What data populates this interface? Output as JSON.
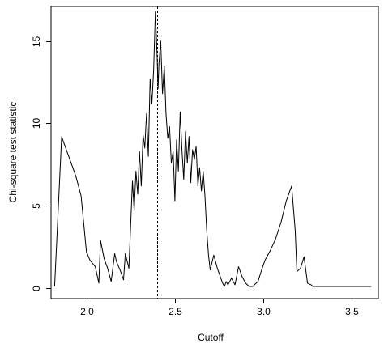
{
  "chart_data": {
    "type": "line",
    "title": "",
    "xlabel": "Cutoff",
    "ylabel": "Chi-square test statistic",
    "xlim": [
      1.8,
      3.65
    ],
    "ylim": [
      0,
      17
    ],
    "xticks": [
      2.0,
      2.5,
      3.0,
      3.5
    ],
    "xtick_labels": [
      "2.0",
      "2.5",
      "3.0",
      "3.5"
    ],
    "yticks": [
      0,
      5,
      10,
      15
    ],
    "ytick_labels": [
      "0",
      "5",
      "10",
      "15"
    ],
    "grid": false,
    "legend": "none",
    "reference_line": {
      "orientation": "vertical",
      "x": 2.4,
      "style": "dashed"
    },
    "series": [
      {
        "x": [
          1.82,
          1.86,
          1.9,
          1.94,
          1.97,
          2.0,
          2.02,
          2.05,
          2.07,
          2.08,
          2.1,
          2.12,
          2.14,
          2.16,
          2.17,
          2.19,
          2.21,
          2.22,
          2.24,
          2.26,
          2.27,
          2.28,
          2.29,
          2.3,
          2.31,
          2.32,
          2.33,
          2.34,
          2.35,
          2.36,
          2.37,
          2.38,
          2.39,
          2.4,
          2.405,
          2.41,
          2.42,
          2.43,
          2.44,
          2.45,
          2.46,
          2.47,
          2.48,
          2.49,
          2.5,
          2.51,
          2.52,
          2.53,
          2.54,
          2.55,
          2.56,
          2.57,
          2.58,
          2.59,
          2.6,
          2.61,
          2.62,
          2.63,
          2.64,
          2.65,
          2.66,
          2.67,
          2.68,
          2.69,
          2.7,
          2.72,
          2.74,
          2.76,
          2.77,
          2.78,
          2.79,
          2.8,
          2.82,
          2.84,
          2.86,
          2.88,
          2.9,
          2.92,
          2.94,
          2.95,
          2.97,
          2.99,
          3.01,
          3.04,
          3.07,
          3.1,
          3.13,
          3.16,
          3.18,
          3.19,
          3.21,
          3.23,
          3.25,
          3.27,
          3.28,
          3.3,
          3.31,
          3.33,
          3.35,
          3.36,
          3.4,
          3.5,
          3.61
        ],
        "values": [
          0.1,
          9.2,
          8.0,
          6.8,
          5.6,
          2.2,
          1.7,
          1.3,
          0.3,
          2.9,
          1.8,
          1.2,
          0.4,
          2.1,
          1.6,
          1.1,
          0.5,
          2.1,
          1.2,
          6.5,
          4.7,
          7.1,
          5.7,
          8.3,
          6.2,
          9.3,
          8.5,
          10.6,
          8.0,
          12.7,
          11.2,
          13.3,
          16.8,
          14.0,
          12.1,
          13.6,
          15.0,
          11.8,
          13.5,
          10.6,
          9.1,
          9.8,
          7.6,
          8.3,
          5.3,
          9.0,
          7.1,
          10.7,
          8.4,
          6.6,
          9.5,
          7.6,
          9.2,
          6.4,
          8.4,
          7.8,
          8.6,
          6.2,
          7.3,
          5.9,
          7.1,
          5.6,
          3.5,
          2.0,
          1.1,
          2.0,
          1.2,
          0.6,
          0.3,
          0.1,
          0.4,
          0.2,
          0.6,
          0.2,
          1.3,
          0.7,
          0.3,
          0.1,
          0.1,
          0.2,
          0.4,
          1.1,
          1.7,
          2.3,
          3.0,
          4.0,
          5.3,
          6.2,
          3.5,
          1.0,
          1.2,
          1.9,
          0.3,
          0.2,
          0.1,
          0.1,
          0.1,
          0.1,
          0.1,
          0.1,
          0.1,
          0.1,
          0.1
        ]
      }
    ]
  }
}
